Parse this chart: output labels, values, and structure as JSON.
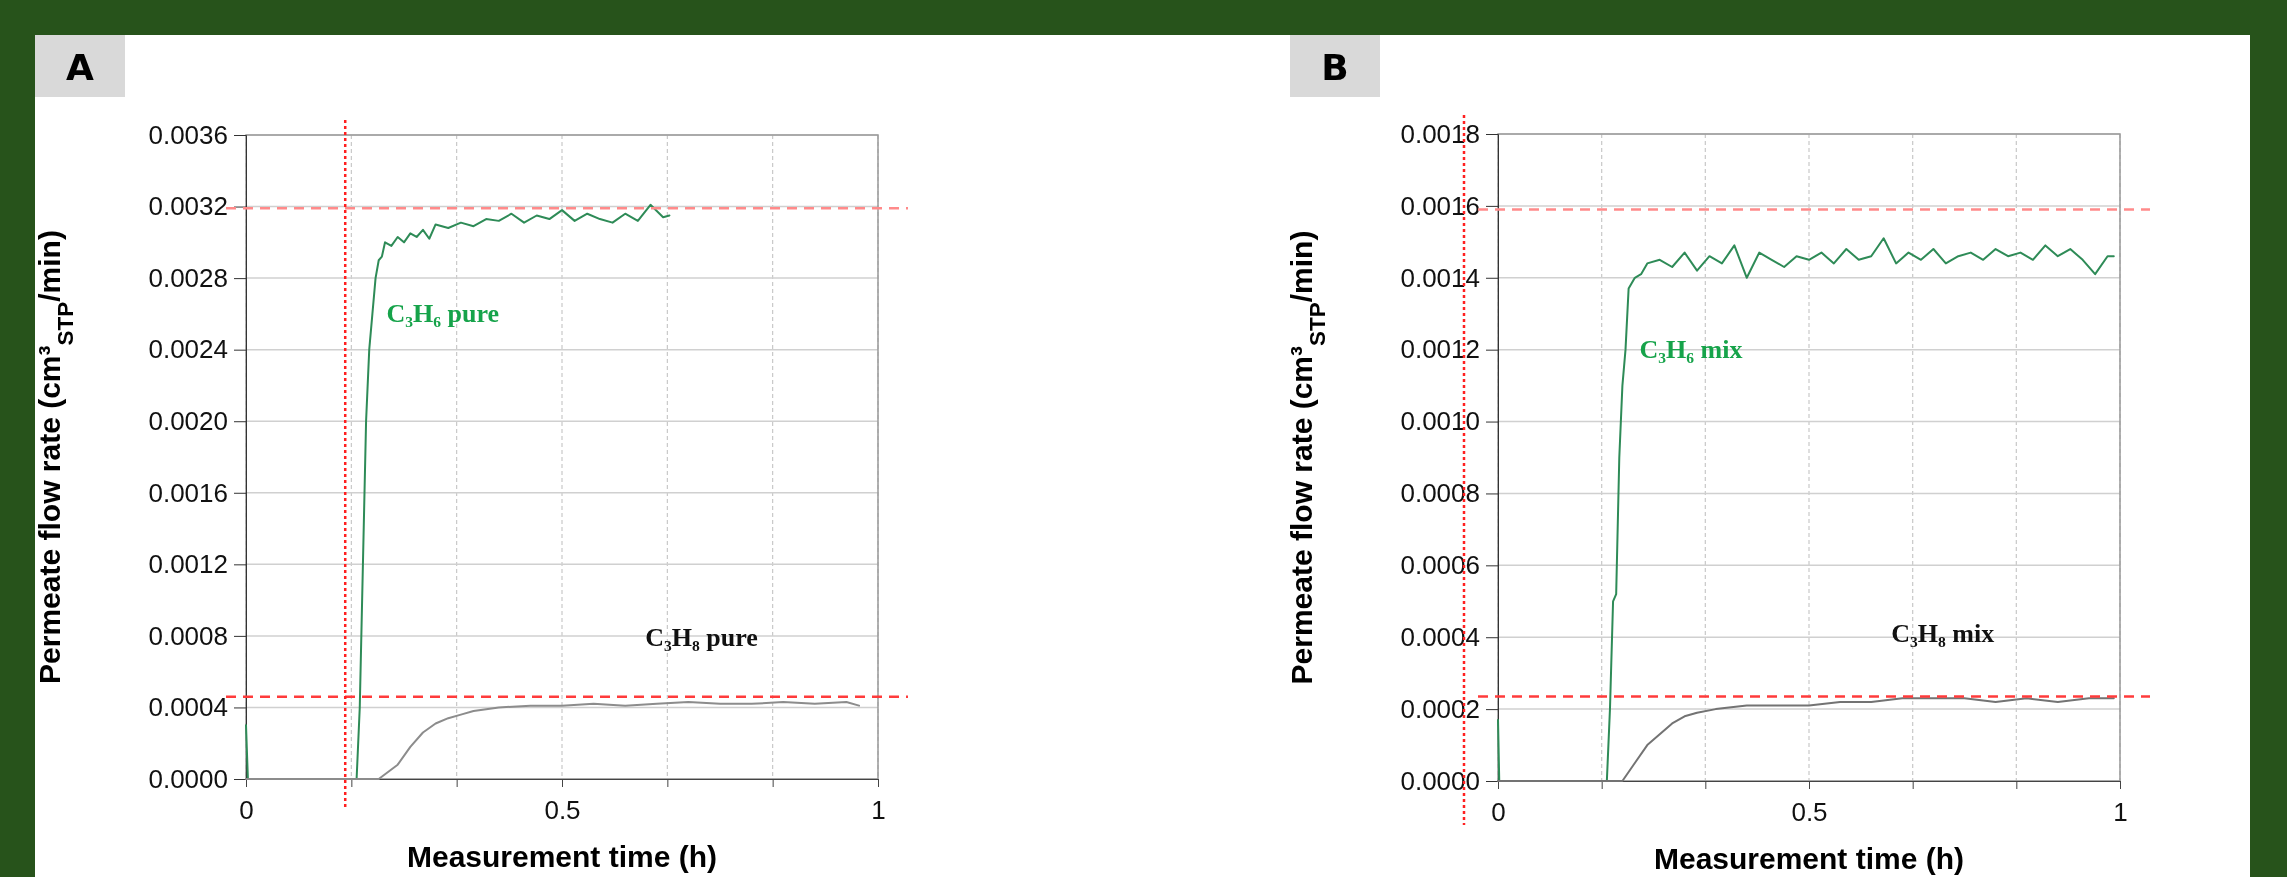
{
  "chart_data": [
    {
      "type": "line",
      "title": "A",
      "xlabel": "Measurement time (h)",
      "ylabel": "Permeate flow rate (cm³$_{STP}$/min)",
      "xlim": [
        0,
        1
      ],
      "xticks": [
        0,
        {
          "value": 0.1667,
          "label": null
        },
        {
          "value": 0.3333,
          "label": null
        },
        0.5,
        {
          "value": 0.6667,
          "label": null
        },
        {
          "value": 0.8333,
          "label": null
        },
        1
      ],
      "ylim": [
        0,
        0.0036
      ],
      "yticks": [
        {
          "value": 0,
          "label": "0.0000"
        },
        {
          "value": 0.0004,
          "label": "0.0004"
        },
        {
          "value": 0.0008,
          "label": "0.0008"
        },
        {
          "value": 0.0012,
          "label": "0.0012"
        },
        {
          "value": 0.0016,
          "label": "0.0016"
        },
        {
          "value": 0.002,
          "label": "0.0020"
        },
        {
          "value": 0.0024,
          "label": "0.0024"
        },
        {
          "value": 0.0028,
          "label": "0.0028"
        },
        {
          "value": 0.0032,
          "label": "0.0032"
        },
        {
          "value": 0.0036,
          "label": "0.0036"
        }
      ],
      "grid": true,
      "series": [
        {
          "name": "C₃H₆ pure",
          "color": "#2e8b57",
          "x": [
            0,
            0.003,
            0.1,
            0.17,
            0.175,
            0.18,
            0.185,
            0.19,
            0.195,
            0.2,
            0.205,
            0.21,
            0.215,
            0.22,
            0.23,
            0.24,
            0.25,
            0.26,
            0.27,
            0.28,
            0.29,
            0.3,
            0.32,
            0.34,
            0.36,
            0.38,
            0.4,
            0.42,
            0.44,
            0.46,
            0.48,
            0.5,
            0.52,
            0.54,
            0.56,
            0.58,
            0.6,
            0.62,
            0.64,
            0.66,
            0.67
          ],
          "values": [
            0.0003,
            0,
            0,
            0,
            0,
            0.0004,
            0.0012,
            0.002,
            0.0024,
            0.0026,
            0.0028,
            0.0029,
            0.00292,
            0.003,
            0.00298,
            0.00303,
            0.003,
            0.00305,
            0.00303,
            0.00307,
            0.00302,
            0.0031,
            0.00308,
            0.00311,
            0.00309,
            0.00313,
            0.00312,
            0.00316,
            0.00311,
            0.00315,
            0.00313,
            0.00318,
            0.00312,
            0.00316,
            0.00313,
            0.00311,
            0.00316,
            0.00312,
            0.00321,
            0.00314,
            0.00315
          ]
        },
        {
          "name": "C₃H₈ pure",
          "color": "#8c8c8c",
          "x": [
            0,
            0.1,
            0.21,
            0.24,
            0.26,
            0.28,
            0.3,
            0.32,
            0.34,
            0.36,
            0.38,
            0.4,
            0.45,
            0.5,
            0.55,
            0.6,
            0.65,
            0.7,
            0.75,
            0.8,
            0.85,
            0.9,
            0.95,
            0.97
          ],
          "values": [
            0,
            0,
            0,
            8e-05,
            0.00018,
            0.00026,
            0.00031,
            0.00034,
            0.00036,
            0.00038,
            0.00039,
            0.0004,
            0.00041,
            0.00041,
            0.00042,
            0.00041,
            0.00042,
            0.00043,
            0.00042,
            0.00042,
            0.00043,
            0.00042,
            0.00043,
            0.00041
          ]
        }
      ],
      "ref_lines": [
        {
          "axis": "y",
          "value": 0.00319,
          "color": "#ff8a8a",
          "line_style": "dashed"
        },
        {
          "axis": "y",
          "value": 0.00046,
          "color": "#ff3b3b",
          "line_style": "dashed"
        },
        {
          "axis": "x",
          "value": 0.157,
          "color": "#ff2020",
          "line_style": "dotted"
        }
      ]
    },
    {
      "type": "line",
      "title": "B",
      "xlabel": "Measurement time (h)",
      "ylabel": "Permeate flow rate (cm³$_{STP}$/min)",
      "xlim": [
        0,
        1
      ],
      "xticks": [
        0,
        {
          "value": 0.1667,
          "label": null
        },
        {
          "value": 0.3333,
          "label": null
        },
        0.5,
        {
          "value": 0.6667,
          "label": null
        },
        {
          "value": 0.8333,
          "label": null
        },
        1
      ],
      "ylim": [
        0,
        0.0018
      ],
      "yticks": [
        {
          "value": 0,
          "label": "0.0000"
        },
        {
          "value": 0.0002,
          "label": "0.0002"
        },
        {
          "value": 0.0004,
          "label": "0.0004"
        },
        {
          "value": 0.0006,
          "label": "0.0006"
        },
        {
          "value": 0.0008,
          "label": "0.0008"
        },
        {
          "value": 0.001,
          "label": "0.0010"
        },
        {
          "value": 0.0012,
          "label": "0.0012"
        },
        {
          "value": 0.0014,
          "label": "0.0014"
        },
        {
          "value": 0.0016,
          "label": "0.0016"
        },
        {
          "value": 0.0018,
          "label": "0.0018"
        }
      ],
      "grid": true,
      "series": [
        {
          "name": "C₃H₆ mix",
          "color": "#2e8b57",
          "x": [
            0,
            0.002,
            0.1,
            0.17,
            0.175,
            0.18,
            0.185,
            0.19,
            0.195,
            0.2,
            0.205,
            0.21,
            0.22,
            0.23,
            0.24,
            0.26,
            0.28,
            0.3,
            0.32,
            0.34,
            0.36,
            0.38,
            0.4,
            0.42,
            0.44,
            0.46,
            0.48,
            0.5,
            0.52,
            0.54,
            0.56,
            0.58,
            0.6,
            0.62,
            0.64,
            0.66,
            0.68,
            0.7,
            0.72,
            0.74,
            0.76,
            0.78,
            0.8,
            0.82,
            0.84,
            0.86,
            0.88,
            0.9,
            0.92,
            0.94,
            0.96,
            0.98,
            0.99
          ],
          "values": [
            0.00017,
            0,
            0,
            0,
            0,
            0.0002,
            0.0005,
            0.00052,
            0.0009,
            0.0011,
            0.0012,
            0.00137,
            0.0014,
            0.00141,
            0.00144,
            0.00145,
            0.00143,
            0.00147,
            0.00142,
            0.00146,
            0.00144,
            0.00149,
            0.0014,
            0.00147,
            0.00145,
            0.00143,
            0.00146,
            0.00145,
            0.00147,
            0.00144,
            0.00148,
            0.00145,
            0.00146,
            0.00151,
            0.00144,
            0.00147,
            0.00145,
            0.00148,
            0.00144,
            0.00146,
            0.00147,
            0.00145,
            0.00148,
            0.00146,
            0.00147,
            0.00145,
            0.00149,
            0.00146,
            0.00148,
            0.00145,
            0.00141,
            0.00146,
            0.00146
          ]
        },
        {
          "name": "C₃H₈ mix",
          "color": "#737373",
          "x": [
            0,
            0.2,
            0.22,
            0.24,
            0.26,
            0.28,
            0.3,
            0.32,
            0.35,
            0.4,
            0.45,
            0.5,
            0.55,
            0.6,
            0.65,
            0.7,
            0.75,
            0.8,
            0.85,
            0.9,
            0.95,
            0.99
          ],
          "values": [
            0,
            0,
            5e-05,
            0.0001,
            0.00013,
            0.00016,
            0.00018,
            0.00019,
            0.0002,
            0.00021,
            0.00021,
            0.00021,
            0.00022,
            0.00022,
            0.00023,
            0.00023,
            0.00023,
            0.00022,
            0.00023,
            0.00022,
            0.00023,
            0.00023
          ]
        }
      ],
      "ref_lines": [
        {
          "axis": "y",
          "value": 0.00159,
          "color": "#ff8a8a",
          "line_style": "dashed"
        },
        {
          "axis": "y",
          "value": 0.000235,
          "color": "#ff3b3b",
          "line_style": "dashed"
        }
      ]
    }
  ]
}
